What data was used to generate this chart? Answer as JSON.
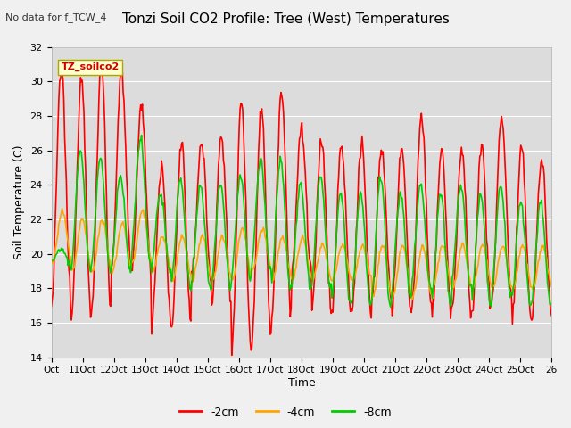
{
  "title": "Tonzi Soil CO2 Profile: Tree (West) Temperatures",
  "subtitle": "No data for f_TCW_4",
  "ylabel": "Soil Temperature (C)",
  "xlabel": "Time",
  "ylim": [
    14,
    32
  ],
  "legend_box_label": "TZ_soilco2",
  "xtick_labels": [
    "Oct",
    "11Oct",
    "12Oct",
    "13Oct",
    "14Oct",
    "15Oct",
    "16Oct",
    "17Oct",
    "18Oct",
    "19Oct",
    "20Oct",
    "21Oct",
    "22Oct",
    "23Oct",
    "24Oct",
    "25Oct",
    "26"
  ],
  "series_labels": [
    "-2cm",
    "-4cm",
    "-8cm"
  ],
  "series_colors": [
    "#ff0000",
    "#ffa500",
    "#00cc00"
  ],
  "line_width": 1.2,
  "grid_color": "#ffffff",
  "yticks": [
    14,
    16,
    18,
    20,
    22,
    24,
    26,
    28,
    30,
    32
  ],
  "fig_facecolor": "#f0f0f0",
  "ax_facecolor": "#dcdcdc"
}
